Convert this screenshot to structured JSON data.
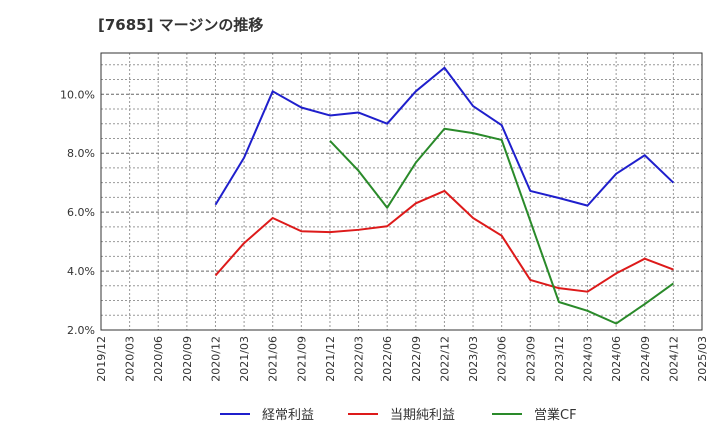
{
  "title": "[7685]  マージンの推移",
  "chart_data": {
    "type": "line",
    "x": [
      "2019/12",
      "2020/03",
      "2020/06",
      "2020/09",
      "2020/12",
      "2021/03",
      "2021/06",
      "2021/09",
      "2021/12",
      "2022/03",
      "2022/06",
      "2022/09",
      "2022/12",
      "2023/03",
      "2023/06",
      "2023/09",
      "2023/12",
      "2024/03",
      "2024/06",
      "2024/09",
      "2024/12",
      "2025/03"
    ],
    "ylim": [
      2.0,
      11.4
    ],
    "yticks": [
      2.0,
      4.0,
      6.0,
      8.0,
      10.0
    ],
    "ytick_labels": [
      "2.0%",
      "4.0%",
      "6.0%",
      "8.0%",
      "10.0%"
    ],
    "grid": true,
    "legend_position": "bottom",
    "series": [
      {
        "name": "経常利益",
        "color": "#1f1fcc",
        "values": [
          null,
          null,
          null,
          null,
          6.25,
          7.85,
          10.1,
          9.55,
          9.28,
          9.38,
          9.0,
          10.1,
          10.9,
          9.6,
          8.95,
          6.72,
          6.48,
          6.22,
          7.3,
          7.93,
          7.0,
          null
        ]
      },
      {
        "name": "当期純利益",
        "color": "#dd1a1a",
        "values": [
          null,
          null,
          null,
          null,
          3.85,
          4.95,
          5.8,
          5.35,
          5.32,
          5.4,
          5.52,
          6.3,
          6.72,
          5.8,
          5.2,
          3.7,
          3.42,
          3.3,
          3.92,
          4.42,
          4.05,
          null
        ]
      },
      {
        "name": "営業CF",
        "color": "#2a8a2a",
        "values": [
          null,
          null,
          null,
          null,
          null,
          null,
          null,
          null,
          8.42,
          7.4,
          6.15,
          7.68,
          8.83,
          8.68,
          8.45,
          5.7,
          2.95,
          2.65,
          2.22,
          2.88,
          3.58,
          null
        ]
      }
    ]
  }
}
